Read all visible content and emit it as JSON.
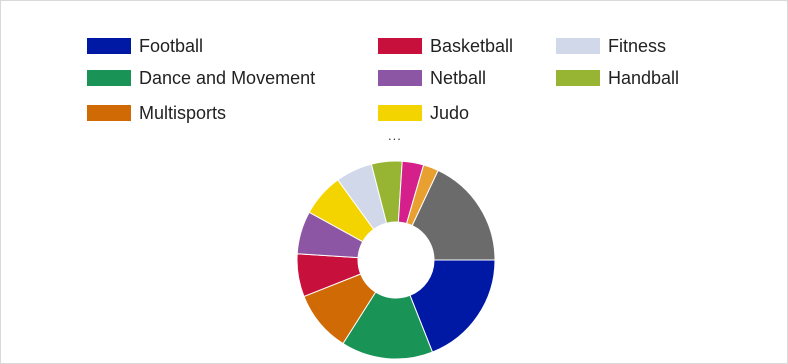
{
  "chart_data": {
    "type": "pie",
    "hole": true,
    "legend_more": "...",
    "legend": [
      {
        "label": "Football",
        "color": "#0019a5"
      },
      {
        "label": "Basketball",
        "color": "#c8103c"
      },
      {
        "label": "Fitness",
        "color": "#d0d8ea"
      },
      {
        "label": "Dance and Movement",
        "color": "#1a9456"
      },
      {
        "label": "Netball",
        "color": "#8d56a4"
      },
      {
        "label": "Handball",
        "color": "#97b532"
      },
      {
        "label": "Multisports",
        "color": "#d06a04"
      },
      {
        "label": "Judo",
        "color": "#f4d400"
      }
    ],
    "slices": [
      {
        "label": "Football",
        "value": 19,
        "color": "#0019a5"
      },
      {
        "label": "Dance and Movement",
        "value": 15,
        "color": "#1a9456"
      },
      {
        "label": "Multisports",
        "value": 10,
        "color": "#d06a04"
      },
      {
        "label": "Basketball",
        "value": 7,
        "color": "#c8103c"
      },
      {
        "label": "Netball",
        "value": 7,
        "color": "#8d56a4"
      },
      {
        "label": "Judo",
        "value": 7,
        "color": "#f4d400"
      },
      {
        "label": "Fitness",
        "value": 6,
        "color": "#d0d8ea"
      },
      {
        "label": "Handball",
        "value": 5,
        "color": "#97b532"
      },
      {
        "label": "",
        "value": 3.5,
        "color": "#d51f8a"
      },
      {
        "label": "",
        "value": 2.5,
        "color": "#e8a030"
      },
      {
        "label": "",
        "value": 18,
        "color": "#6b6b6b"
      }
    ]
  }
}
